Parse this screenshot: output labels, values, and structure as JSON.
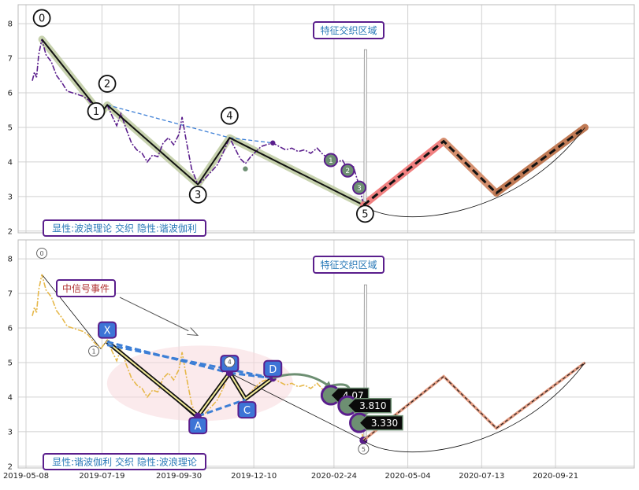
{
  "chart_data": [
    {
      "type": "line",
      "panel": "top",
      "ylim": [
        1.95,
        8.55
      ],
      "yticks": [
        "2",
        "3",
        "4",
        "5",
        "6",
        "7",
        "8"
      ],
      "grid": true,
      "annotation_title": "特征交织区域",
      "legend_box": "显性:波浪理论 交织 隐性:谐波伽利",
      "wave_points": [
        {
          "label": "0",
          "date": "2019-05-23",
          "value": 7.55
        },
        {
          "label": "1",
          "date": "2019-07-18",
          "value": 5.4
        },
        {
          "label": "2",
          "date": "2019-07-24",
          "value": 5.65
        },
        {
          "label": "3",
          "date": "2019-10-18",
          "value": 3.35
        },
        {
          "label": "4",
          "date": "2019-11-17",
          "value": 4.7
        },
        {
          "label": "5",
          "date": "2020-03-23",
          "value": 2.75
        }
      ],
      "sub_points": [
        {
          "label": "1",
          "date": "2020-02-21",
          "value": 4.1
        },
        {
          "label": "2",
          "date": "2020-03-08",
          "value": 3.8
        },
        {
          "label": "3",
          "date": "2020-03-19",
          "value": 3.3
        }
      ],
      "forecast_points": [
        {
          "date": "2020-03-23",
          "value": 2.75
        },
        {
          "date": "2020-06-07",
          "value": 4.6
        },
        {
          "date": "2020-07-27",
          "value": 3.1
        },
        {
          "date": "2020-10-19",
          "value": 5.0
        }
      ],
      "price_series": [
        {
          "date": "2019-05-14",
          "value": 6.35
        },
        {
          "date": "2019-05-16",
          "value": 6.6
        },
        {
          "date": "2019-05-18",
          "value": 6.45
        },
        {
          "date": "2019-05-20",
          "value": 7.1
        },
        {
          "date": "2019-05-23",
          "value": 7.55
        },
        {
          "date": "2019-05-27",
          "value": 7.1
        },
        {
          "date": "2019-06-01",
          "value": 6.9
        },
        {
          "date": "2019-06-06",
          "value": 6.5
        },
        {
          "date": "2019-06-11",
          "value": 6.3
        },
        {
          "date": "2019-06-16",
          "value": 6.05
        },
        {
          "date": "2019-06-21",
          "value": 6.0
        },
        {
          "date": "2019-06-26",
          "value": 5.95
        },
        {
          "date": "2019-07-01",
          "value": 5.9
        },
        {
          "date": "2019-07-06",
          "value": 5.8
        },
        {
          "date": "2019-07-11",
          "value": 5.6
        },
        {
          "date": "2019-07-18",
          "value": 5.4
        },
        {
          "date": "2019-07-24",
          "value": 5.65
        },
        {
          "date": "2019-07-29",
          "value": 5.3
        },
        {
          "date": "2019-08-02",
          "value": 5.05
        },
        {
          "date": "2019-08-06",
          "value": 5.4
        },
        {
          "date": "2019-08-11",
          "value": 4.95
        },
        {
          "date": "2019-08-16",
          "value": 4.55
        },
        {
          "date": "2019-08-21",
          "value": 4.35
        },
        {
          "date": "2019-08-26",
          "value": 4.25
        },
        {
          "date": "2019-08-31",
          "value": 4.0
        },
        {
          "date": "2019-09-05",
          "value": 4.2
        },
        {
          "date": "2019-09-10",
          "value": 4.15
        },
        {
          "date": "2019-09-15",
          "value": 4.55
        },
        {
          "date": "2019-09-20",
          "value": 4.7
        },
        {
          "date": "2019-09-25",
          "value": 4.5
        },
        {
          "date": "2019-09-30",
          "value": 4.8
        },
        {
          "date": "2019-10-03",
          "value": 5.3
        },
        {
          "date": "2019-10-07",
          "value": 4.6
        },
        {
          "date": "2019-10-12",
          "value": 3.8
        },
        {
          "date": "2019-10-18",
          "value": 3.35
        },
        {
          "date": "2019-10-24",
          "value": 3.5
        },
        {
          "date": "2019-10-30",
          "value": 3.7
        },
        {
          "date": "2019-11-05",
          "value": 3.9
        },
        {
          "date": "2019-11-10",
          "value": 4.2
        },
        {
          "date": "2019-11-17",
          "value": 4.7
        },
        {
          "date": "2019-11-22",
          "value": 4.4
        },
        {
          "date": "2019-11-27",
          "value": 4.1
        },
        {
          "date": "2019-12-02",
          "value": 3.95
        },
        {
          "date": "2019-12-07",
          "value": 4.15
        },
        {
          "date": "2019-12-12",
          "value": 4.3
        },
        {
          "date": "2019-12-17",
          "value": 4.45
        },
        {
          "date": "2019-12-22",
          "value": 4.5
        },
        {
          "date": "2019-12-28",
          "value": 4.55
        },
        {
          "date": "2020-01-03",
          "value": 4.45
        },
        {
          "date": "2020-01-09",
          "value": 4.35
        },
        {
          "date": "2020-01-15",
          "value": 4.4
        },
        {
          "date": "2020-01-21",
          "value": 4.3
        },
        {
          "date": "2020-01-27",
          "value": 4.35
        },
        {
          "date": "2020-02-02",
          "value": 4.25
        },
        {
          "date": "2020-02-08",
          "value": 4.4
        },
        {
          "date": "2020-02-14",
          "value": 4.2
        },
        {
          "date": "2020-02-21",
          "value": 4.1
        },
        {
          "date": "2020-02-27",
          "value": 4.0
        },
        {
          "date": "2020-03-03",
          "value": 4.05
        },
        {
          "date": "2020-03-08",
          "value": 3.8
        },
        {
          "date": "2020-03-13",
          "value": 3.9
        },
        {
          "date": "2020-03-19",
          "value": 3.3
        },
        {
          "date": "2020-03-23",
          "value": 2.75
        }
      ]
    },
    {
      "type": "line",
      "panel": "bottom",
      "ylim": [
        1.95,
        8.55
      ],
      "yticks": [
        "2",
        "3",
        "4",
        "5",
        "6",
        "7",
        "8"
      ],
      "xticks": [
        "2019-05-08",
        "2019-07-19",
        "2019-09-30",
        "2019-12-10",
        "2020-02-24",
        "2020-05-04",
        "2020-07-13",
        "2020-09-21"
      ],
      "grid": true,
      "annotation_title": "特征交织区域",
      "signal_note": "中信号事件",
      "legend_box": "显性:谐波伽利 交织 隐性:波浪理论",
      "harmonic_points": [
        {
          "label": "X",
          "date": "2019-07-24",
          "value": 5.6
        },
        {
          "label": "A",
          "date": "2019-10-18",
          "value": 3.45
        },
        {
          "label": "B",
          "date": "2019-11-17",
          "value": 4.7
        },
        {
          "label": "C",
          "date": "2019-12-02",
          "value": 3.95
        },
        {
          "label": "D",
          "date": "2019-12-28",
          "value": 4.55
        }
      ],
      "price_boxes": [
        {
          "label": "4.07",
          "date": "2020-02-21",
          "value": 4.1
        },
        {
          "label": "3.810",
          "date": "2020-03-08",
          "value": 3.8
        },
        {
          "label": "3.330",
          "date": "2020-03-19",
          "value": 3.3
        }
      ],
      "faded_wave_labels": [
        "0",
        "1",
        "4",
        "5"
      ]
    }
  ]
}
